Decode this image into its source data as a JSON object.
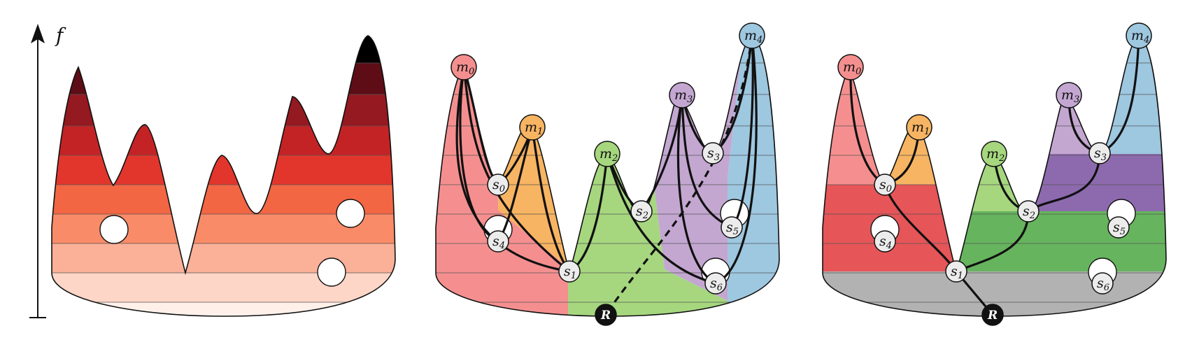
{
  "axis_label": "f",
  "nodes": {
    "m0": {
      "base": "m",
      "sub": "0"
    },
    "m1": {
      "base": "m",
      "sub": "1"
    },
    "m2": {
      "base": "m",
      "sub": "2"
    },
    "m3": {
      "base": "m",
      "sub": "3"
    },
    "m4": {
      "base": "m",
      "sub": "4"
    },
    "s0": {
      "base": "s",
      "sub": "0"
    },
    "s1": {
      "base": "s",
      "sub": "1"
    },
    "s2": {
      "base": "s",
      "sub": "2"
    },
    "s3": {
      "base": "s",
      "sub": "3"
    },
    "s4": {
      "base": "s",
      "sub": "4"
    },
    "s5": {
      "base": "s",
      "sub": "5"
    },
    "s6": {
      "base": "s",
      "sub": "6"
    },
    "R": {
      "base": "R",
      "sub": ""
    }
  },
  "colors": {
    "m0": "#f58f8f",
    "m1": "#f7b462",
    "m2": "#a6d77f",
    "m3": "#c3a7d1",
    "m4": "#9ec7e0",
    "root": "#111111",
    "saddle": "#ececec",
    "merged_red": "#e65558",
    "merged_green": "#66b45e",
    "merged_purple": "#8d6aae",
    "merged_gray": "#b2b2b2"
  }
}
